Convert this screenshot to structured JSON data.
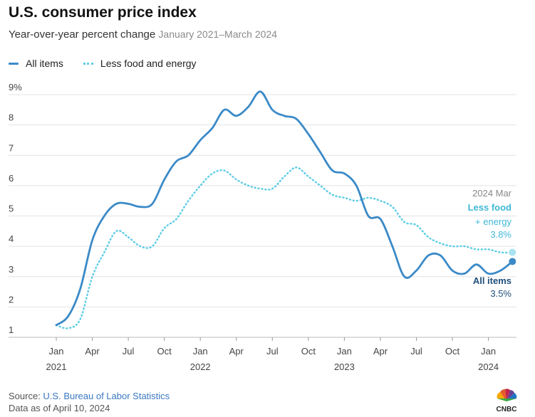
{
  "header": {
    "title": "U.S. consumer price index",
    "subtitle": "Year-over-year percent change",
    "date_range": "January 2021–March 2024"
  },
  "legend": {
    "all_items": "All items",
    "core": "Less food and energy"
  },
  "annotation": {
    "date": "2024 Mar",
    "core_label_1": "Less food",
    "core_label_2": "+ energy",
    "core_value": "3.8%",
    "all_label": "All items",
    "all_value": "3.5%"
  },
  "footer": {
    "source_prefix": "Source: ",
    "source_name": "U.S. Bureau of Labor Statistics",
    "data_note": "Data as of April 10, 2024"
  },
  "logo": {
    "text": "CNBC",
    "icon": "cnbc-peacock-icon"
  },
  "colors": {
    "all_items": "#3b8ac7",
    "core": "#5fcde6",
    "core_label": "#3fb8d6",
    "all_label": "#1f4f7a",
    "grid": "#e3e3e3",
    "axis_text": "#444444"
  },
  "chart_data": {
    "type": "line",
    "title": "U.S. consumer price index",
    "subtitle": "Year-over-year percent change",
    "xlabel": "",
    "ylabel": "",
    "ylim": [
      1,
      9
    ],
    "yticks": [
      "1",
      "2",
      "3",
      "4",
      "5",
      "6",
      "7",
      "8",
      "9%"
    ],
    "ytick_values": [
      1,
      2,
      3,
      4,
      5,
      6,
      7,
      8,
      9
    ],
    "xticks": [
      {
        "month_index": 0,
        "label": "Jan",
        "year": "2021"
      },
      {
        "month_index": 3,
        "label": "Apr",
        "year": ""
      },
      {
        "month_index": 6,
        "label": "Jul",
        "year": ""
      },
      {
        "month_index": 9,
        "label": "Oct",
        "year": ""
      },
      {
        "month_index": 12,
        "label": "Jan",
        "year": "2022"
      },
      {
        "month_index": 15,
        "label": "Apr",
        "year": ""
      },
      {
        "month_index": 18,
        "label": "Jul",
        "year": ""
      },
      {
        "month_index": 21,
        "label": "Oct",
        "year": ""
      },
      {
        "month_index": 24,
        "label": "Jan",
        "year": "2023"
      },
      {
        "month_index": 27,
        "label": "Apr",
        "year": ""
      },
      {
        "month_index": 30,
        "label": "Jul",
        "year": ""
      },
      {
        "month_index": 33,
        "label": "Oct",
        "year": ""
      },
      {
        "month_index": 36,
        "label": "Jan",
        "year": "2024"
      }
    ],
    "grid": true,
    "legend_position": "top-left",
    "x": [
      "2021-01",
      "2021-02",
      "2021-03",
      "2021-04",
      "2021-05",
      "2021-06",
      "2021-07",
      "2021-08",
      "2021-09",
      "2021-10",
      "2021-11",
      "2021-12",
      "2022-01",
      "2022-02",
      "2022-03",
      "2022-04",
      "2022-05",
      "2022-06",
      "2022-07",
      "2022-08",
      "2022-09",
      "2022-10",
      "2022-11",
      "2022-12",
      "2023-01",
      "2023-02",
      "2023-03",
      "2023-04",
      "2023-05",
      "2023-06",
      "2023-07",
      "2023-08",
      "2023-09",
      "2023-10",
      "2023-11",
      "2023-12",
      "2024-01",
      "2024-02",
      "2024-03"
    ],
    "series": [
      {
        "name": "All items",
        "values": [
          1.4,
          1.7,
          2.6,
          4.2,
          5.0,
          5.4,
          5.4,
          5.3,
          5.4,
          6.2,
          6.8,
          7.0,
          7.5,
          7.9,
          8.5,
          8.3,
          8.6,
          9.1,
          8.5,
          8.3,
          8.2,
          7.7,
          7.1,
          6.5,
          6.4,
          6.0,
          5.0,
          4.9,
          4.0,
          3.0,
          3.2,
          3.7,
          3.7,
          3.2,
          3.1,
          3.4,
          3.1,
          3.2,
          3.5
        ],
        "style": "solid"
      },
      {
        "name": "Less food and energy",
        "values": [
          1.4,
          1.3,
          1.6,
          3.0,
          3.8,
          4.5,
          4.3,
          4.0,
          4.0,
          4.6,
          4.9,
          5.5,
          6.0,
          6.4,
          6.5,
          6.2,
          6.0,
          5.9,
          5.9,
          6.3,
          6.6,
          6.3,
          6.0,
          5.7,
          5.6,
          5.5,
          5.6,
          5.5,
          5.3,
          4.8,
          4.7,
          4.3,
          4.1,
          4.0,
          4.0,
          3.9,
          3.9,
          3.8,
          3.8
        ],
        "style": "dotted"
      }
    ]
  }
}
